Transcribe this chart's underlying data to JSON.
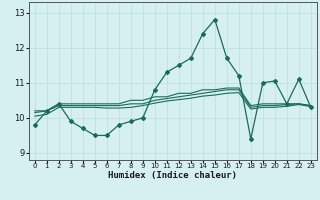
{
  "xlabel": "Humidex (Indice chaleur)",
  "bg_color": "#d6eff0",
  "line_color": "#1a6b5a",
  "grid_color": "#b8dede",
  "xlim": [
    -0.5,
    23.5
  ],
  "ylim": [
    8.8,
    13.3
  ],
  "yticks": [
    9,
    10,
    11,
    12,
    13
  ],
  "xticks": [
    0,
    1,
    2,
    3,
    4,
    5,
    6,
    7,
    8,
    9,
    10,
    11,
    12,
    13,
    14,
    15,
    16,
    17,
    18,
    19,
    20,
    21,
    22,
    23
  ],
  "main_line": [
    9.8,
    10.2,
    10.4,
    9.9,
    9.7,
    9.5,
    9.5,
    9.8,
    9.9,
    10.0,
    10.8,
    11.3,
    11.5,
    11.7,
    12.4,
    12.8,
    11.7,
    11.2,
    9.4,
    11.0,
    11.05,
    10.4,
    11.1,
    10.3
  ],
  "trend1": [
    10.2,
    10.2,
    10.4,
    10.4,
    10.4,
    10.4,
    10.4,
    10.4,
    10.5,
    10.5,
    10.6,
    10.6,
    10.7,
    10.7,
    10.8,
    10.8,
    10.85,
    10.85,
    10.35,
    10.4,
    10.4,
    10.4,
    10.4,
    10.35
  ],
  "trend2": [
    10.15,
    10.2,
    10.35,
    10.35,
    10.35,
    10.35,
    10.35,
    10.35,
    10.4,
    10.4,
    10.5,
    10.55,
    10.6,
    10.65,
    10.7,
    10.75,
    10.8,
    10.8,
    10.3,
    10.35,
    10.35,
    10.38,
    10.4,
    10.35
  ],
  "trend3": [
    10.05,
    10.1,
    10.3,
    10.3,
    10.3,
    10.3,
    10.28,
    10.28,
    10.3,
    10.35,
    10.42,
    10.48,
    10.52,
    10.56,
    10.62,
    10.65,
    10.7,
    10.72,
    10.25,
    10.3,
    10.3,
    10.33,
    10.38,
    10.32
  ]
}
